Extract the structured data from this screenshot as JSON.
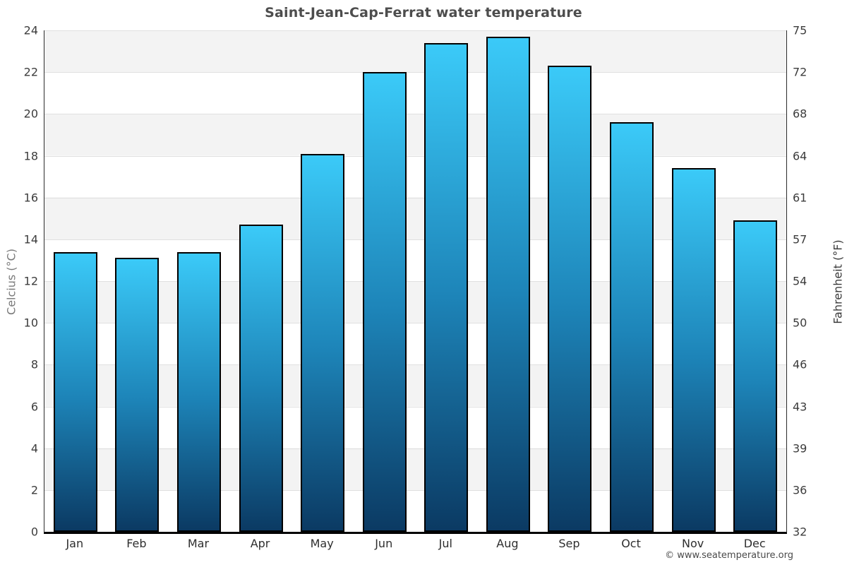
{
  "title": "Saint-Jean-Cap-Ferrat water temperature",
  "footer": "© www.seatemperature.org",
  "chart_data": {
    "type": "bar",
    "title": "Saint-Jean-Cap-Ferrat water temperature",
    "categories": [
      "Jan",
      "Feb",
      "Mar",
      "Apr",
      "May",
      "Jun",
      "Jul",
      "Aug",
      "Sep",
      "Oct",
      "Nov",
      "Dec"
    ],
    "values": [
      13.4,
      13.1,
      13.4,
      14.7,
      18.1,
      22.0,
      23.4,
      23.7,
      22.3,
      19.6,
      17.4,
      14.9
    ],
    "ylabel_left": "Celcius (°C)",
    "ylabel_right": "Fahrenheit (°F)",
    "ylim": [
      0,
      24
    ],
    "yticks_celsius": [
      0,
      2,
      4,
      6,
      8,
      10,
      12,
      14,
      16,
      18,
      20,
      22,
      24
    ],
    "yticks_fahrenheit": [
      32,
      36,
      39,
      43,
      46,
      50,
      54,
      57,
      61,
      64,
      68,
      72,
      75
    ],
    "grid": "horizontal gridlines with alternating background bands",
    "legend": "none",
    "colors": {
      "bar_gradient_top": "#3bcaf8",
      "bar_gradient_mid": "#1d84b8",
      "bar_gradient_bottom": "#0b3a63",
      "bar_border": "#000000",
      "band_gray": "#f3f3f3",
      "band_white": "#ffffff",
      "gridline": "#e0e0e0",
      "axis_line": "#000000",
      "title_text": "#4d4d4d"
    }
  }
}
